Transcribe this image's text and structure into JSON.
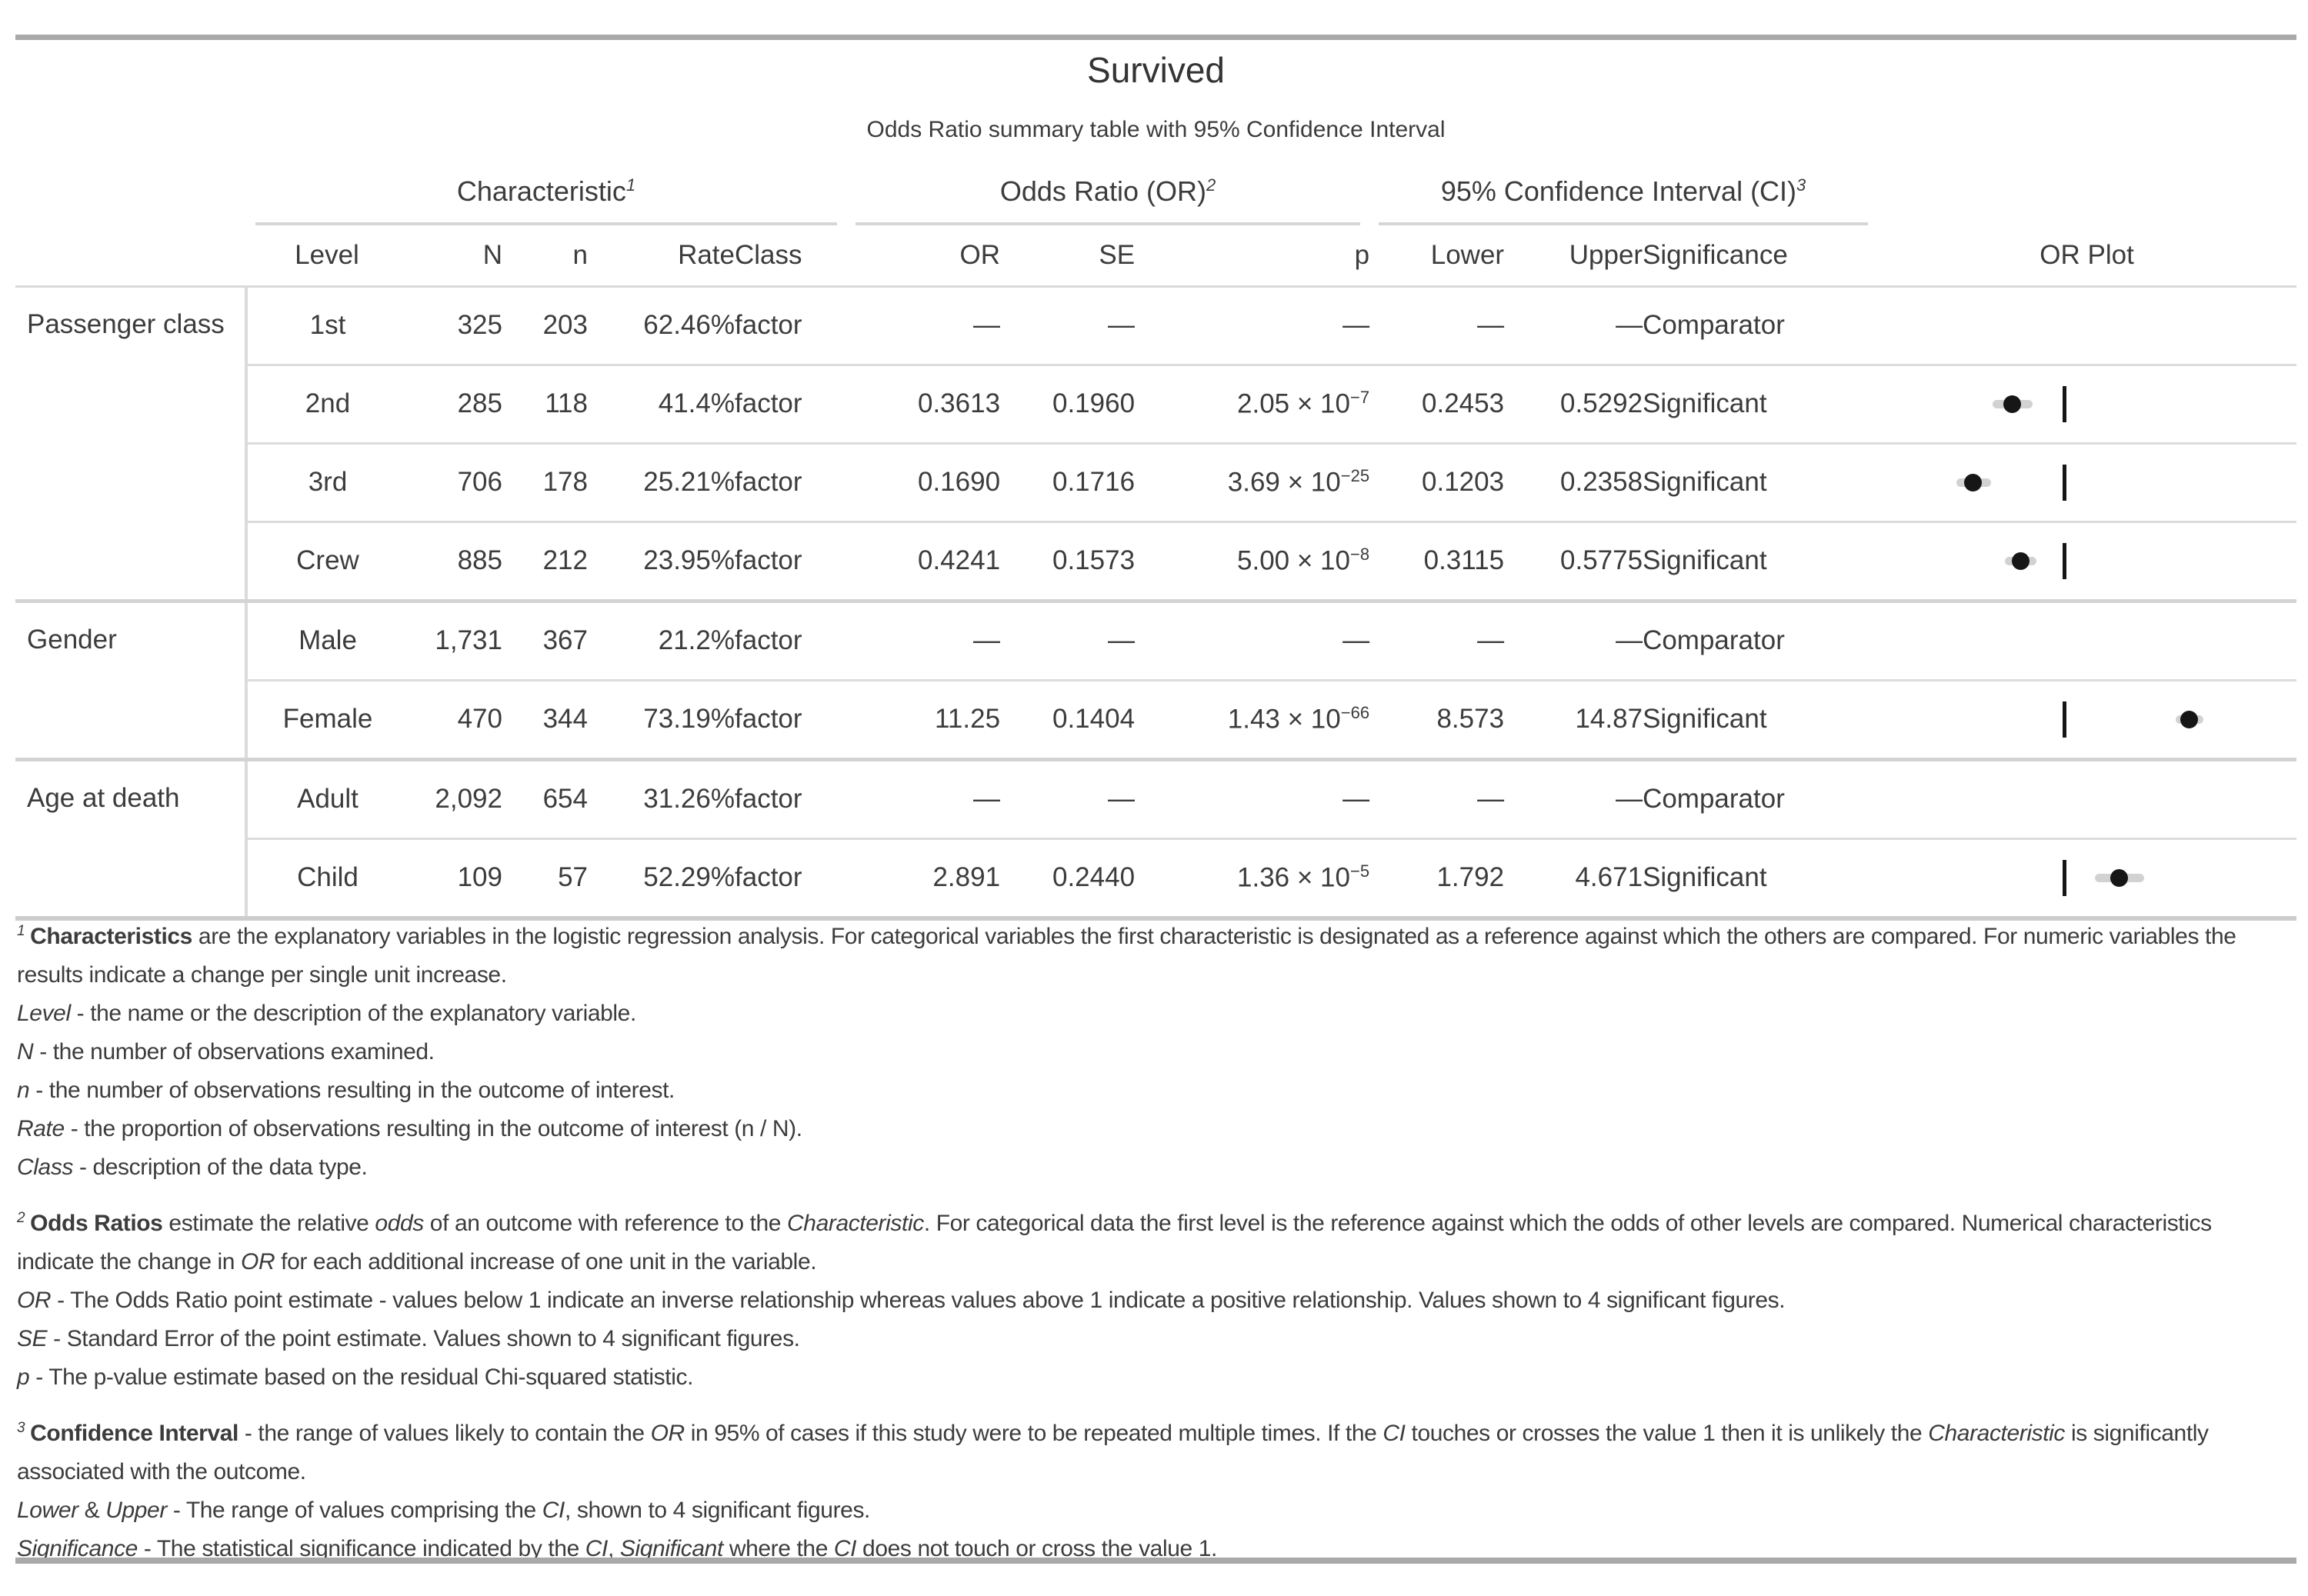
{
  "title": "Survived",
  "subtitle": "Odds Ratio summary table with 95% Confidence Interval",
  "colors": {
    "text": "#3c3c3c",
    "outer_border": "#a9a9a9",
    "grid_line": "#d9d9d9",
    "section_line": "#d4d4d4",
    "plot_dot": "#161616",
    "plot_ci_bar": "#d2d2d2"
  },
  "chart_data": {
    "type": "table",
    "title": "Survived",
    "subtitle": "Odds Ratio summary table with 95% Confidence Interval",
    "column_groups": [
      {
        "label": "Characteristic",
        "sup": "1",
        "spans": [
          "Level",
          "N",
          "n",
          "Rate",
          "Class"
        ]
      },
      {
        "label": "Odds Ratio (OR)",
        "sup": "2",
        "spans": [
          "OR",
          "SE",
          "p"
        ]
      },
      {
        "label": "95% Confidence Interval (CI)",
        "sup": "3",
        "spans": [
          "Lower",
          "Upper",
          "Significance"
        ]
      }
    ],
    "columns": [
      "Level",
      "N",
      "n",
      "Rate",
      "Class",
      "OR",
      "SE",
      "p",
      "Lower",
      "Upper",
      "Significance",
      "OR Plot"
    ],
    "empty_value": "—",
    "p_times_notation": " × 10",
    "or_plot": {
      "scale": "log10",
      "reference_value": 1
    },
    "sections": [
      {
        "name": "Passenger class",
        "rows": [
          {
            "level": "1st",
            "N": "325",
            "n": "203",
            "rate": "62.46%",
            "class": "factor",
            "or": "—",
            "se": "—",
            "p": null,
            "lower": "—",
            "upper": "—",
            "significance": "Comparator",
            "plot": null
          },
          {
            "level": "2nd",
            "N": "285",
            "n": "118",
            "rate": "41.4%",
            "class": "factor",
            "or": "0.3613",
            "se": "0.1960",
            "p": {
              "mant": "2.05",
              "exp": "−7"
            },
            "lower": "0.2453",
            "upper": "0.5292",
            "significance": "Significant",
            "plot": {
              "or": 0.3613,
              "lower": 0.2453,
              "upper": 0.5292
            }
          },
          {
            "level": "3rd",
            "N": "706",
            "n": "178",
            "rate": "25.21%",
            "class": "factor",
            "or": "0.1690",
            "se": "0.1716",
            "p": {
              "mant": "3.69",
              "exp": "−25"
            },
            "lower": "0.1203",
            "upper": "0.2358",
            "significance": "Significant",
            "plot": {
              "or": 0.169,
              "lower": 0.1203,
              "upper": 0.2358
            }
          },
          {
            "level": "Crew",
            "N": "885",
            "n": "212",
            "rate": "23.95%",
            "class": "factor",
            "or": "0.4241",
            "se": "0.1573",
            "p": {
              "mant": "5.00",
              "exp": "−8"
            },
            "lower": "0.3115",
            "upper": "0.5775",
            "significance": "Significant",
            "plot": {
              "or": 0.4241,
              "lower": 0.3115,
              "upper": 0.5775
            }
          }
        ]
      },
      {
        "name": "Gender",
        "rows": [
          {
            "level": "Male",
            "N": "1,731",
            "n": "367",
            "rate": "21.2%",
            "class": "factor",
            "or": "—",
            "se": "—",
            "p": null,
            "lower": "—",
            "upper": "—",
            "significance": "Comparator",
            "plot": null
          },
          {
            "level": "Female",
            "N": "470",
            "n": "344",
            "rate": "73.19%",
            "class": "factor",
            "or": "11.25",
            "se": "0.1404",
            "p": {
              "mant": "1.43",
              "exp": "−66"
            },
            "lower": "8.573",
            "upper": "14.87",
            "significance": "Significant",
            "plot": {
              "or": 11.25,
              "lower": 8.573,
              "upper": 14.87
            }
          }
        ]
      },
      {
        "name": "Age at death",
        "rows": [
          {
            "level": "Adult",
            "N": "2,092",
            "n": "654",
            "rate": "31.26%",
            "class": "factor",
            "or": "—",
            "se": "—",
            "p": null,
            "lower": "—",
            "upper": "—",
            "significance": "Comparator",
            "plot": null
          },
          {
            "level": "Child",
            "N": "109",
            "n": "57",
            "rate": "52.29%",
            "class": "factor",
            "or": "2.891",
            "se": "0.2440",
            "p": {
              "mant": "1.36",
              "exp": "−5"
            },
            "lower": "1.792",
            "upper": "4.671",
            "significance": "Significant",
            "plot": {
              "or": 2.891,
              "lower": 1.792,
              "upper": 4.671
            }
          }
        ]
      }
    ]
  },
  "footnotes": [
    {
      "marker": "1",
      "intro": [
        {
          "b": "Characteristics"
        },
        {
          "t": " are the explanatory variables in the logistic regression analysis. For categorical variables the first characteristic is designated as a reference against which the others are compared. For numeric variables the results indicate a change per single unit increase."
        }
      ],
      "items": [
        [
          {
            "i": "Level"
          },
          {
            "t": " - the name or the description of the explanatory variable."
          }
        ],
        [
          {
            "i": "N"
          },
          {
            "t": " - the number of observations examined."
          }
        ],
        [
          {
            "i": "n"
          },
          {
            "t": " - the number of observations resulting in the outcome of interest."
          }
        ],
        [
          {
            "i": "Rate"
          },
          {
            "t": " - the proportion of observations resulting in the outcome of interest (n / N)."
          }
        ],
        [
          {
            "i": "Class"
          },
          {
            "t": " - description of the data type."
          }
        ]
      ]
    },
    {
      "marker": "2",
      "intro": [
        {
          "b": "Odds Ratios"
        },
        {
          "t": " estimate the relative "
        },
        {
          "i": "odds"
        },
        {
          "t": " of an outcome with reference to the "
        },
        {
          "i": "Characteristic"
        },
        {
          "t": ". For categorical data the first level is the reference against which the odds of other levels are compared. Numerical characteristics indicate the change in "
        },
        {
          "i": "OR"
        },
        {
          "t": " for each additional increase of one unit in the variable."
        }
      ],
      "items": [
        [
          {
            "i": "OR"
          },
          {
            "t": " - The Odds Ratio point estimate - values below 1 indicate an inverse relationship whereas values above 1 indicate a positive relationship. Values shown to 4 significant figures."
          }
        ],
        [
          {
            "i": "SE"
          },
          {
            "t": " - Standard Error of the point estimate. Values shown to 4 significant figures."
          }
        ],
        [
          {
            "i": "p"
          },
          {
            "t": " - The p-value estimate based on the residual Chi-squared statistic."
          }
        ]
      ]
    },
    {
      "marker": "3",
      "intro": [
        {
          "b": "Confidence Interval"
        },
        {
          "t": " - the range of values likely to contain the "
        },
        {
          "i": "OR"
        },
        {
          "t": " in 95% of cases if this study were to be repeated multiple times. If the "
        },
        {
          "i": "CI"
        },
        {
          "t": " touches or crosses the value 1 then it is unlikely the "
        },
        {
          "i": "Characteristic"
        },
        {
          "t": " is significantly associated with the outcome."
        }
      ],
      "items": [
        [
          {
            "i": "Lower"
          },
          {
            "t": " & "
          },
          {
            "i": "Upper"
          },
          {
            "t": " - The range of values comprising the "
          },
          {
            "i": "CI"
          },
          {
            "t": ", shown to 4 significant figures."
          }
        ],
        [
          {
            "i": "Significance"
          },
          {
            "t": " - The statistical significance indicated by the "
          },
          {
            "i": "CI"
          },
          {
            "t": ", "
          },
          {
            "i": "Significant"
          },
          {
            "t": " where the "
          },
          {
            "i": "CI"
          },
          {
            "t": " does not touch or cross the value 1."
          }
        ]
      ]
    }
  ]
}
